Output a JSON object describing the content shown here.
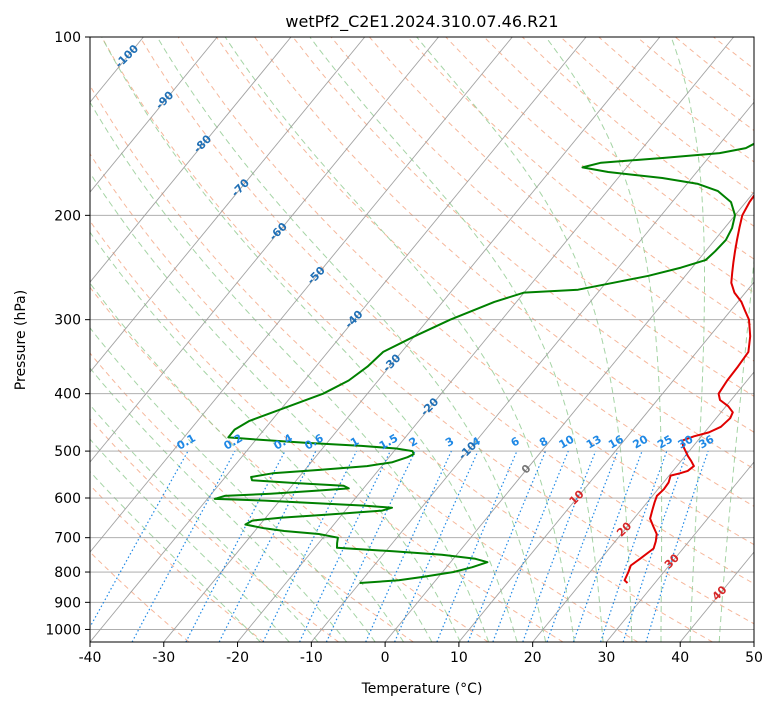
{
  "chart_data": {
    "type": "line",
    "title": "wetPf2_C2E1.2024.310.07.46.R21",
    "xlabel": "Temperature (°C)",
    "ylabel": "Pressure (hPa)",
    "xlim": [
      -40,
      50
    ],
    "ylim": [
      1050,
      100
    ],
    "y_scale": "log",
    "x_ticks": [
      -40,
      -30,
      -20,
      -10,
      0,
      10,
      20,
      30,
      40,
      50
    ],
    "y_ticks": [
      100,
      200,
      300,
      400,
      500,
      600,
      700,
      800,
      900,
      1000
    ],
    "grid": true,
    "colors": {
      "temperature": "#e00000",
      "dewpoint": "#008000",
      "isotherm": "#999999",
      "dry_adiabat": "#f4a582",
      "moist_adiabat": "#8fc98f",
      "mixing_ratio": "#1e88e5",
      "isotherm_label_blue": "#1f6fb5",
      "isotherm_label_red": "#d62728",
      "isotherm_label_zero": "#777777"
    },
    "isotherm_labels_upper": [
      -100,
      -90,
      -80,
      -70,
      -60,
      -50,
      -40,
      -30,
      -20,
      -10
    ],
    "isotherm_label_zero": 0,
    "isotherm_labels_lower": [
      10,
      20,
      30,
      40
    ],
    "mixing_ratio_labels": [
      0.1,
      0.2,
      0.4,
      0.6,
      1,
      1.5,
      2,
      3,
      4,
      6,
      8,
      10,
      13,
      16,
      20,
      25,
      30,
      36
    ],
    "series": [
      {
        "key": "temperature",
        "points": [
          [
            26.3,
            835
          ],
          [
            25.6,
            826
          ],
          [
            25.2,
            800
          ],
          [
            24.8,
            780
          ],
          [
            25.3,
            760
          ],
          [
            26.0,
            730
          ],
          [
            25.5,
            710
          ],
          [
            24.8,
            690
          ],
          [
            23.5,
            670
          ],
          [
            22.2,
            650
          ],
          [
            21.6,
            630
          ],
          [
            21.0,
            610
          ],
          [
            20.6,
            595
          ],
          [
            20.8,
            580
          ],
          [
            20.7,
            565
          ],
          [
            20.2,
            550
          ],
          [
            21.2,
            545
          ],
          [
            22.0,
            540
          ],
          [
            22.3,
            530
          ],
          [
            21.4,
            520
          ],
          [
            20.4,
            510
          ],
          [
            19.5,
            500
          ],
          [
            18.6,
            490
          ],
          [
            17.9,
            480
          ],
          [
            19.0,
            472
          ],
          [
            20.6,
            465
          ],
          [
            21.6,
            455
          ],
          [
            21.9,
            440
          ],
          [
            21.6,
            430
          ],
          [
            20.3,
            420
          ],
          [
            18.5,
            410
          ],
          [
            17.6,
            400
          ],
          [
            17.3,
            380
          ],
          [
            17.2,
            360
          ],
          [
            17.0,
            340
          ],
          [
            15.5,
            320
          ],
          [
            13.5,
            300
          ],
          [
            12.0,
            290
          ],
          [
            10.5,
            280
          ],
          [
            8.5,
            270
          ],
          [
            7.0,
            260
          ],
          [
            6.0,
            250
          ],
          [
            5.0,
            240
          ],
          [
            4.0,
            230
          ],
          [
            3.0,
            220
          ],
          [
            2.0,
            210
          ],
          [
            1.0,
            200
          ],
          [
            0.5,
            190
          ],
          [
            0.3,
            180
          ],
          [
            1.0,
            172
          ],
          [
            2.5,
            166
          ],
          [
            4.0,
            160
          ],
          [
            5.5,
            155
          ],
          [
            6.5,
            150
          ],
          [
            7.0,
            145
          ],
          [
            6.5,
            140
          ],
          [
            5.5,
            135
          ],
          [
            4.5,
            130
          ],
          [
            3.5,
            125
          ],
          [
            3.0,
            120
          ],
          [
            2.5,
            115
          ],
          [
            2.5,
            110
          ],
          [
            2.4,
            105
          ],
          [
            2.3,
            100
          ]
        ]
      },
      {
        "key": "dewpoint",
        "points": [
          [
            -10.0,
            835
          ],
          [
            -5.0,
            826
          ],
          [
            -2.0,
            815
          ],
          [
            1.5,
            800
          ],
          [
            3.5,
            785
          ],
          [
            5.0,
            770
          ],
          [
            3.0,
            760
          ],
          [
            -2.0,
            748
          ],
          [
            -9.0,
            738
          ],
          [
            -17.0,
            728
          ],
          [
            -17.5,
            715
          ],
          [
            -18.0,
            700
          ],
          [
            -21.0,
            690
          ],
          [
            -26.0,
            682
          ],
          [
            -29.0,
            675
          ],
          [
            -32.0,
            665
          ],
          [
            -31.5,
            655
          ],
          [
            -28.0,
            648
          ],
          [
            -22.0,
            640
          ],
          [
            -15.0,
            630
          ],
          [
            -14.0,
            623
          ],
          [
            -18.0,
            618
          ],
          [
            -25.0,
            612
          ],
          [
            -32.0,
            606
          ],
          [
            -39.0,
            602
          ],
          [
            -38.0,
            595
          ],
          [
            -32.0,
            590
          ],
          [
            -26.0,
            583
          ],
          [
            -22.0,
            578
          ],
          [
            -23.0,
            572
          ],
          [
            -30.0,
            566
          ],
          [
            -36.0,
            560
          ],
          [
            -36.5,
            553
          ],
          [
            -34.0,
            545
          ],
          [
            -28.0,
            538
          ],
          [
            -22.0,
            530
          ],
          [
            -19.0,
            522
          ],
          [
            -17.5,
            512
          ],
          [
            -17.0,
            506
          ],
          [
            -17.5,
            500
          ],
          [
            -20.0,
            495
          ],
          [
            -25.0,
            490
          ],
          [
            -33.0,
            484
          ],
          [
            -40.0,
            478
          ],
          [
            -44.0,
            474
          ],
          [
            -44.0,
            460
          ],
          [
            -43.0,
            445
          ],
          [
            -40.0,
            425
          ],
          [
            -36.0,
            400
          ],
          [
            -34.0,
            380
          ],
          [
            -33.0,
            360
          ],
          [
            -32.5,
            340
          ],
          [
            -30.0,
            320
          ],
          [
            -27.0,
            300
          ],
          [
            -23.0,
            280
          ],
          [
            -20.0,
            270
          ],
          [
            -13.0,
            267
          ],
          [
            -9.0,
            260
          ],
          [
            -5.0,
            253
          ],
          [
            -1.5,
            245
          ],
          [
            1.0,
            238
          ],
          [
            1.3,
            230
          ],
          [
            1.5,
            220
          ],
          [
            1.0,
            210
          ],
          [
            0.0,
            200
          ],
          [
            -2.0,
            190
          ],
          [
            -5.0,
            182
          ],
          [
            -8.5,
            177
          ],
          [
            -14.0,
            173
          ],
          [
            -22.0,
            169
          ],
          [
            -26.0,
            166
          ],
          [
            -24.0,
            163
          ],
          [
            -16.0,
            160
          ],
          [
            -9.0,
            157
          ],
          [
            -6.0,
            154
          ],
          [
            -5.0,
            150
          ],
          [
            -4.5,
            145
          ],
          [
            -4.5,
            140
          ],
          [
            -5.0,
            135
          ],
          [
            -5.0,
            130
          ],
          [
            -4.0,
            125
          ],
          [
            -3.5,
            120
          ],
          [
            -3.0,
            115
          ],
          [
            -2.0,
            110
          ],
          [
            -0.5,
            105
          ],
          [
            0.0,
            100
          ]
        ]
      }
    ]
  }
}
